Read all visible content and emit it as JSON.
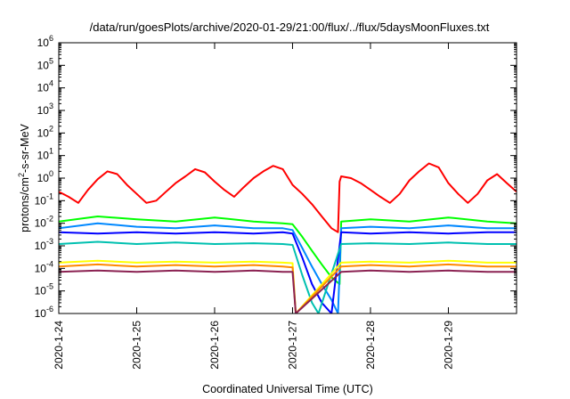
{
  "chart_data": {
    "type": "line",
    "title": "/data/run/goesPlots/archive/2020-01-29/21:00/flux/../flux/5daysMoonFluxes.txt",
    "xlabel": "Coordinated Universal Time (UTC)",
    "ylabel": {
      "prefix": "protons/cm",
      "superscript": "2",
      "suffix": "-s-sr-MeV"
    },
    "y_scale": "log",
    "ylim": [
      1e-06,
      1000000.0
    ],
    "y_ticks": [
      {
        "base": "10",
        "exp": "-6",
        "value": 1e-06
      },
      {
        "base": "10",
        "exp": "-5",
        "value": 1e-05
      },
      {
        "base": "10",
        "exp": "-4",
        "value": 0.0001
      },
      {
        "base": "10",
        "exp": "-3",
        "value": 0.001
      },
      {
        "base": "10",
        "exp": "-2",
        "value": 0.01
      },
      {
        "base": "10",
        "exp": "-1",
        "value": 0.1
      },
      {
        "base": "10",
        "exp": "0",
        "value": 1
      },
      {
        "base": "10",
        "exp": "1",
        "value": 10
      },
      {
        "base": "10",
        "exp": "2",
        "value": 100
      },
      {
        "base": "10",
        "exp": "3",
        "value": 1000
      },
      {
        "base": "10",
        "exp": "4",
        "value": 10000
      },
      {
        "base": "10",
        "exp": "5",
        "value": 100000
      },
      {
        "base": "10",
        "exp": "6",
        "value": 1000000
      }
    ],
    "x_range": [
      "2020-01-24T00:00",
      "2020-01-29T21:00"
    ],
    "x_ticks": [
      "2020-1-24",
      "2020-1-25",
      "2020-1-26",
      "2020-1-27",
      "2020-1-28",
      "2020-1-29"
    ],
    "grid": false,
    "legend": "none",
    "series": [
      {
        "color": "#ff0000",
        "x": [
          "2020-01-24T00:00",
          "2020-01-24T03:00",
          "2020-01-24T06:00",
          "2020-01-24T09:00",
          "2020-01-24T12:00",
          "2020-01-24T15:00",
          "2020-01-24T18:00",
          "2020-01-24T21:00",
          "2020-01-25T00:00",
          "2020-01-25T03:00",
          "2020-01-25T06:00",
          "2020-01-25T09:00",
          "2020-01-25T12:00",
          "2020-01-25T15:00",
          "2020-01-25T18:00",
          "2020-01-25T21:00",
          "2020-01-26T00:00",
          "2020-01-26T03:00",
          "2020-01-26T06:00",
          "2020-01-26T09:00",
          "2020-01-26T12:00",
          "2020-01-26T15:00",
          "2020-01-26T18:00",
          "2020-01-26T21:00",
          "2020-01-27T00:00",
          "2020-01-27T03:00",
          "2020-01-27T06:00",
          "2020-01-27T09:00",
          "2020-01-27T12:00",
          "2020-01-27T14:00",
          "2020-01-27T14:30",
          "2020-01-27T15:00",
          "2020-01-27T18:00",
          "2020-01-27T21:00",
          "2020-01-28T00:00",
          "2020-01-28T03:00",
          "2020-01-28T06:00",
          "2020-01-28T09:00",
          "2020-01-28T12:00",
          "2020-01-28T15:00",
          "2020-01-28T18:00",
          "2020-01-28T21:00",
          "2020-01-29T00:00",
          "2020-01-29T03:00",
          "2020-01-29T06:00",
          "2020-01-29T09:00",
          "2020-01-29T12:00",
          "2020-01-29T15:00",
          "2020-01-29T18:00",
          "2020-01-29T21:00"
        ],
        "values": [
          0.25,
          0.15,
          0.08,
          0.3,
          0.9,
          2.0,
          1.5,
          0.5,
          0.2,
          0.08,
          0.1,
          0.25,
          0.6,
          1.2,
          2.5,
          1.8,
          0.7,
          0.3,
          0.15,
          0.4,
          1.0,
          2.0,
          3.5,
          2.5,
          0.5,
          0.2,
          0.07,
          0.02,
          0.006,
          0.004,
          0.7,
          1.2,
          1.0,
          0.6,
          0.3,
          0.15,
          0.08,
          0.2,
          0.8,
          2.0,
          4.5,
          3.0,
          0.6,
          0.2,
          0.08,
          0.2,
          0.8,
          1.5,
          0.6,
          0.25
        ]
      },
      {
        "color": "#00ff00",
        "x": [
          "2020-01-24T00:00",
          "2020-01-24T12:00",
          "2020-01-25T00:00",
          "2020-01-25T12:00",
          "2020-01-26T00:00",
          "2020-01-26T12:00",
          "2020-01-26T21:00",
          "2020-01-27T00:00",
          "2020-01-27T03:00",
          "2020-01-27T06:00",
          "2020-01-27T09:00",
          "2020-01-27T12:00",
          "2020-01-27T14:30",
          "2020-01-27T15:00",
          "2020-01-28T00:00",
          "2020-01-28T12:00",
          "2020-01-29T00:00",
          "2020-01-29T12:00",
          "2020-01-29T21:00"
        ],
        "values": [
          0.012,
          0.02,
          0.015,
          0.012,
          0.018,
          0.012,
          0.01,
          0.009,
          0.0025,
          0.0006,
          0.00015,
          4e-05,
          2e-05,
          0.012,
          0.015,
          0.012,
          0.018,
          0.012,
          0.01
        ]
      },
      {
        "color": "#0088ff",
        "x": [
          "2020-01-24T00:00",
          "2020-01-24T12:00",
          "2020-01-25T00:00",
          "2020-01-25T12:00",
          "2020-01-26T00:00",
          "2020-01-26T12:00",
          "2020-01-26T21:00",
          "2020-01-27T00:00",
          "2020-01-27T03:00",
          "2020-01-27T06:00",
          "2020-01-27T09:00",
          "2020-01-27T12:00",
          "2020-01-27T14:00",
          "2020-01-27T15:00",
          "2020-01-28T00:00",
          "2020-01-28T12:00",
          "2020-01-29T00:00",
          "2020-01-29T12:00",
          "2020-01-29T21:00"
        ],
        "values": [
          0.006,
          0.01,
          0.007,
          0.006,
          0.008,
          0.006,
          0.006,
          0.005,
          0.0008,
          0.00012,
          2e-05,
          4e-06,
          1e-06,
          0.006,
          0.007,
          0.006,
          0.008,
          0.006,
          0.006
        ]
      },
      {
        "color": "#0000ff",
        "x": [
          "2020-01-24T00:00",
          "2020-01-24T12:00",
          "2020-01-25T00:00",
          "2020-01-25T12:00",
          "2020-01-26T00:00",
          "2020-01-26T12:00",
          "2020-01-26T21:00",
          "2020-01-27T00:00",
          "2020-01-27T03:00",
          "2020-01-27T06:00",
          "2020-01-27T09:00",
          "2020-01-27T12:00",
          "2020-01-27T15:00",
          "2020-01-28T00:00",
          "2020-01-28T12:00",
          "2020-01-29T00:00",
          "2020-01-29T12:00",
          "2020-01-29T21:00"
        ],
        "values": [
          0.004,
          0.0035,
          0.004,
          0.0035,
          0.004,
          0.0035,
          0.004,
          0.0035,
          0.0003,
          2e-05,
          3e-06,
          1e-06,
          0.004,
          0.0035,
          0.004,
          0.0035,
          0.004,
          0.004
        ]
      },
      {
        "color": "#00c0b0",
        "x": [
          "2020-01-24T00:00",
          "2020-01-24T12:00",
          "2020-01-25T00:00",
          "2020-01-25T12:00",
          "2020-01-26T00:00",
          "2020-01-26T12:00",
          "2020-01-26T21:00",
          "2020-01-27T00:00",
          "2020-01-27T03:00",
          "2020-01-27T06:00",
          "2020-01-27T08:00",
          "2020-01-27T15:00",
          "2020-01-28T00:00",
          "2020-01-28T12:00",
          "2020-01-29T00:00",
          "2020-01-29T12:00",
          "2020-01-29T21:00"
        ],
        "values": [
          0.0012,
          0.0015,
          0.0012,
          0.0014,
          0.0012,
          0.0013,
          0.0012,
          0.0011,
          5e-05,
          3e-06,
          1e-06,
          0.0012,
          0.0013,
          0.0012,
          0.0014,
          0.0012,
          0.0012
        ]
      },
      {
        "color": "#ffff00",
        "x": [
          "2020-01-24T00:00",
          "2020-01-24T12:00",
          "2020-01-25T00:00",
          "2020-01-25T12:00",
          "2020-01-26T00:00",
          "2020-01-26T12:00",
          "2020-01-26T21:00",
          "2020-01-27T00:00",
          "2020-01-27T01:00",
          "2020-01-27T15:00",
          "2020-01-28T00:00",
          "2020-01-28T12:00",
          "2020-01-29T00:00",
          "2020-01-29T12:00",
          "2020-01-29T21:00"
        ],
        "values": [
          0.00018,
          0.00022,
          0.00018,
          0.0002,
          0.00018,
          0.0002,
          0.00018,
          0.00017,
          1e-06,
          0.00018,
          0.0002,
          0.00018,
          0.00022,
          0.00018,
          0.00018
        ]
      },
      {
        "color": "#ff8800",
        "x": [
          "2020-01-24T00:00",
          "2020-01-24T12:00",
          "2020-01-25T00:00",
          "2020-01-25T12:00",
          "2020-01-26T00:00",
          "2020-01-26T12:00",
          "2020-01-26T21:00",
          "2020-01-27T00:00",
          "2020-01-27T01:00",
          "2020-01-27T15:00",
          "2020-01-28T00:00",
          "2020-01-28T12:00",
          "2020-01-29T00:00",
          "2020-01-29T12:00",
          "2020-01-29T21:00"
        ],
        "values": [
          0.00012,
          0.00015,
          0.00012,
          0.00014,
          0.00012,
          0.00014,
          0.00012,
          0.00011,
          1e-06,
          0.00012,
          0.00014,
          0.00012,
          0.00015,
          0.00012,
          0.00012
        ]
      },
      {
        "color": "#8b2252",
        "x": [
          "2020-01-24T00:00",
          "2020-01-24T12:00",
          "2020-01-25T00:00",
          "2020-01-25T12:00",
          "2020-01-26T00:00",
          "2020-01-26T12:00",
          "2020-01-26T21:00",
          "2020-01-27T00:00",
          "2020-01-27T01:00",
          "2020-01-27T15:00",
          "2020-01-28T00:00",
          "2020-01-28T12:00",
          "2020-01-29T00:00",
          "2020-01-29T12:00",
          "2020-01-29T21:00"
        ],
        "values": [
          7e-05,
          8e-05,
          7e-05,
          8e-05,
          7e-05,
          8e-05,
          7e-05,
          7e-05,
          1e-06,
          7e-05,
          8e-05,
          7e-05,
          8e-05,
          7e-05,
          7e-05
        ]
      }
    ]
  }
}
